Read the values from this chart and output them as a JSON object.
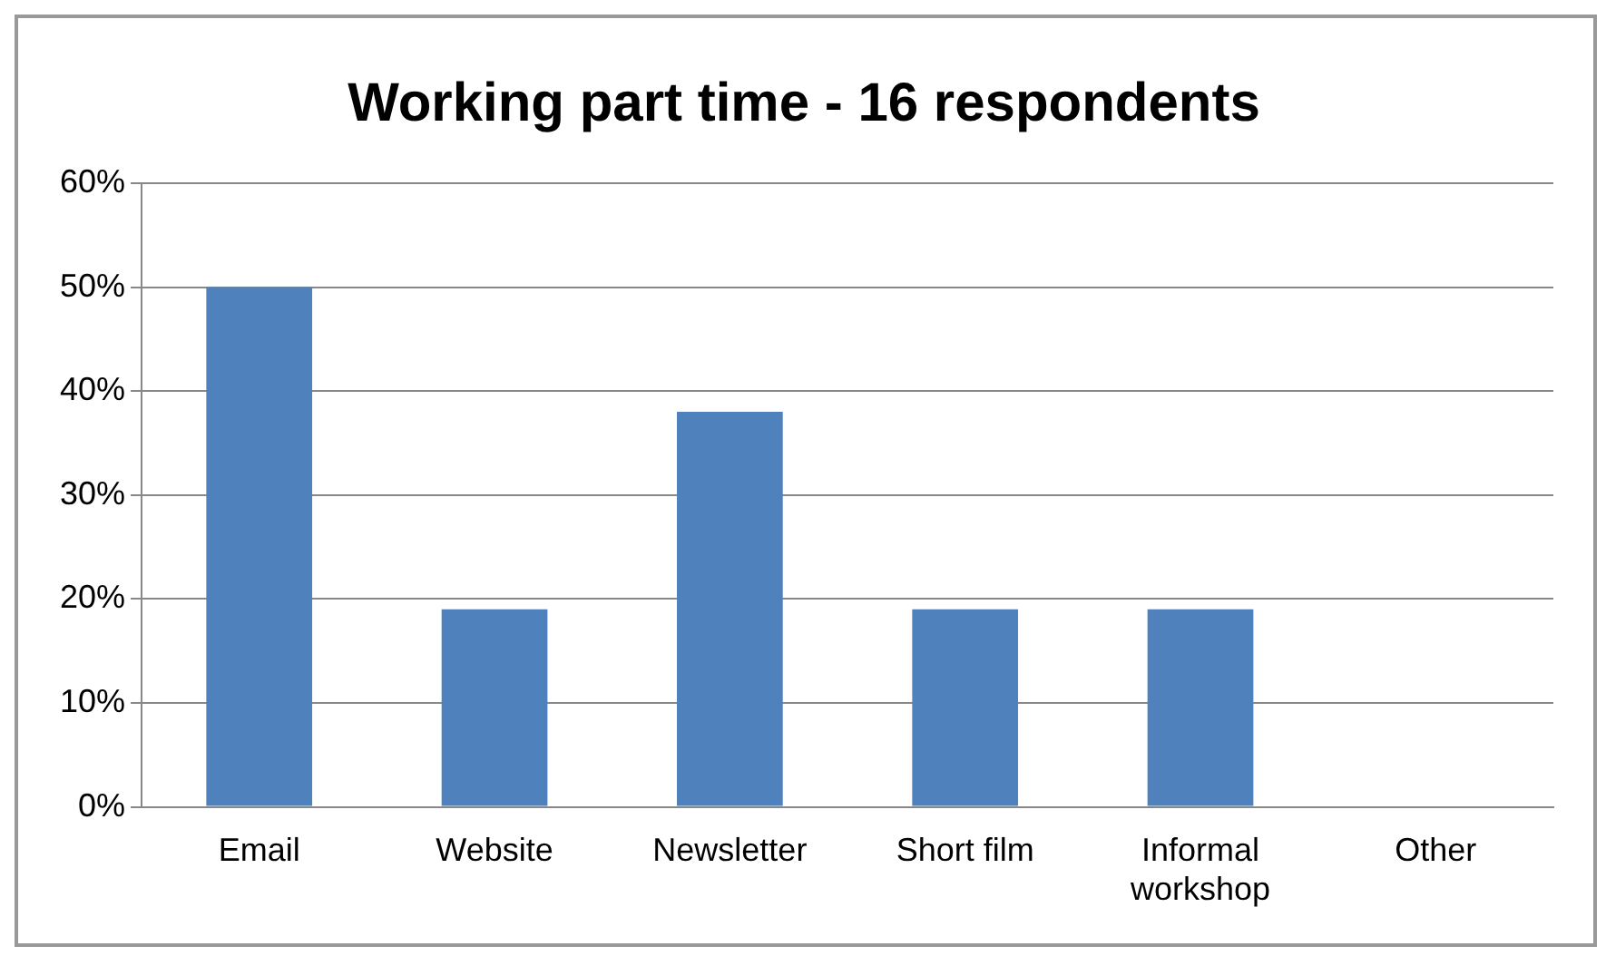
{
  "chart_data": {
    "type": "bar",
    "title": "Working part time - 16 respondents",
    "categories": [
      "Email",
      "Website",
      "Newsletter",
      "Short film",
      "Informal workshop",
      "Other"
    ],
    "values": [
      50,
      19,
      38,
      19,
      19,
      0
    ],
    "color": "#4f81bd",
    "ylim": [
      0,
      60
    ],
    "yticks": [
      {
        "value": 0,
        "label": "0%"
      },
      {
        "value": 10,
        "label": "10%"
      },
      {
        "value": 20,
        "label": "20%"
      },
      {
        "value": 30,
        "label": "30%"
      },
      {
        "value": 40,
        "label": "40%"
      },
      {
        "value": 50,
        "label": "50%"
      },
      {
        "value": 60,
        "label": "60%"
      }
    ],
    "grid": "y"
  }
}
